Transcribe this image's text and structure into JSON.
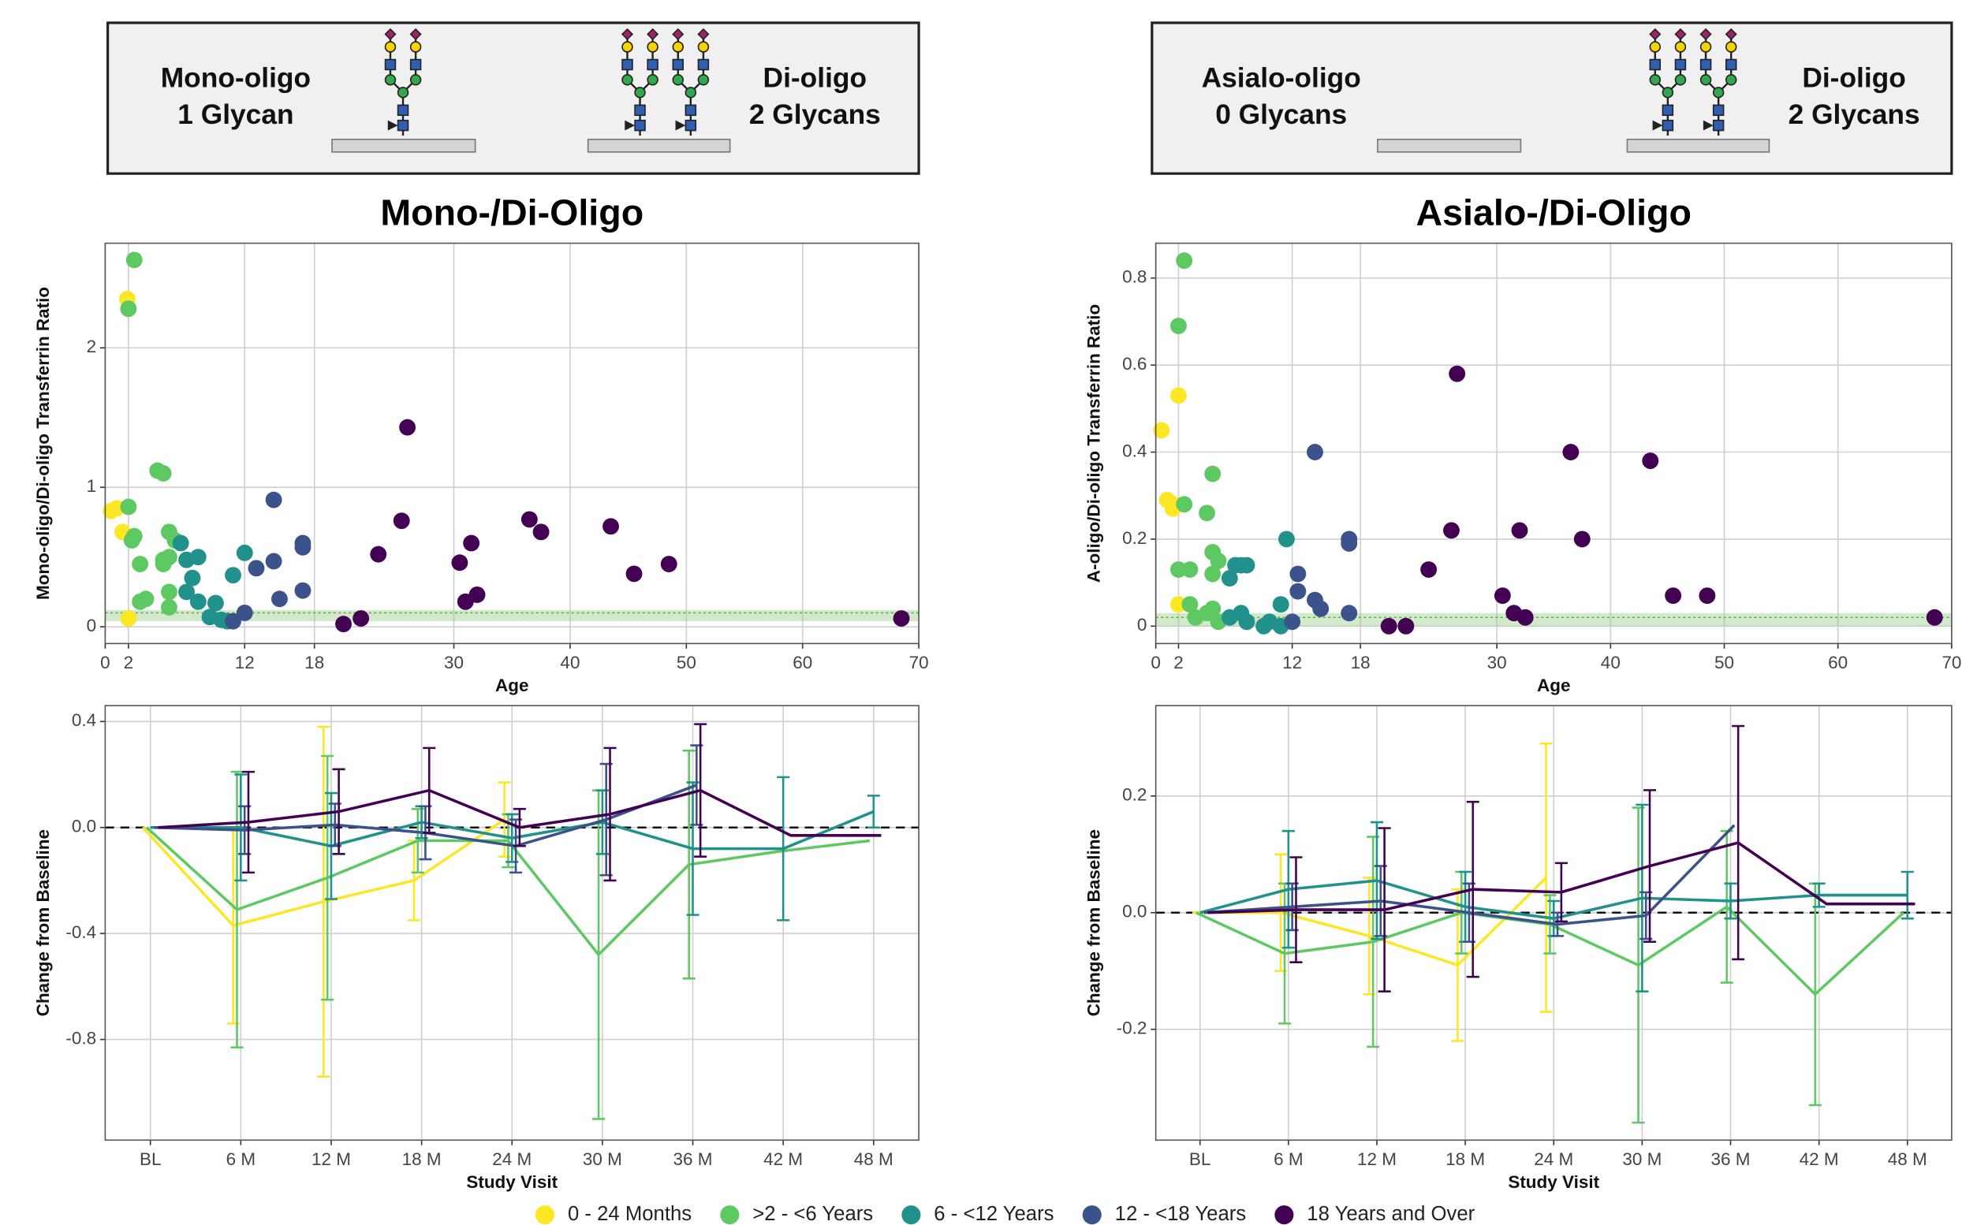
{
  "headers": [
    {
      "left": "Mono-oligo",
      "left_sub": "1 Glycan",
      "right": "Di-oligo",
      "right_sub": "2 Glycans"
    },
    {
      "left": "Asialo-oligo",
      "left_sub": "0 Glycans",
      "right": "Di-oligo",
      "right_sub": "2 Glycans"
    }
  ],
  "chart_data": [
    {
      "type": "scatter",
      "title": "Mono-/Di-Oligo",
      "x_label": "Age",
      "y_label": "Mono-oligo/Di-oligo Transferrin Ratio",
      "xlim": [
        0,
        70
      ],
      "xticks": [
        0,
        2,
        12,
        18,
        30,
        40,
        50,
        60,
        70
      ],
      "ylim": [
        -0.12,
        2.75
      ],
      "yticks": [
        0,
        1,
        2
      ],
      "grid": true,
      "reference_band": [
        0.04,
        0.12
      ],
      "reference_line": 0.1,
      "series": [
        {
          "name": "0 - 24 Months",
          "color": "#fde725",
          "x": [
            0.5,
            1,
            1.5,
            2,
            1.9
          ],
          "values": [
            0.83,
            0.85,
            0.68,
            0.06,
            2.35
          ]
        },
        {
          "name": ">2 - <6 Years",
          "color": "#5ec962",
          "x": [
            2,
            2.5,
            2,
            2.3,
            2.5,
            3,
            3,
            3.5,
            4.5,
            5,
            5.5,
            5,
            5,
            5.5,
            5.5,
            5.5,
            6
          ],
          "values": [
            2.28,
            2.63,
            0.86,
            0.62,
            0.65,
            0.45,
            0.18,
            0.2,
            1.12,
            1.1,
            0.5,
            0.48,
            0.45,
            0.68,
            0.25,
            0.14,
            0.62
          ]
        },
        {
          "name": "6 - <12 Years",
          "color": "#21918c",
          "x": [
            6.5,
            7,
            7,
            7.5,
            8,
            8,
            9,
            9.5,
            10,
            10.5,
            11,
            12
          ],
          "values": [
            0.6,
            0.48,
            0.25,
            0.35,
            0.5,
            0.18,
            0.07,
            0.17,
            0.05,
            0.04,
            0.37,
            0.53
          ]
        },
        {
          "name": "12 - <18 Years",
          "color": "#3b528b",
          "x": [
            12,
            13,
            14.5,
            14.5,
            15,
            17,
            17,
            17,
            11
          ],
          "values": [
            0.1,
            0.42,
            0.47,
            0.91,
            0.2,
            0.6,
            0.57,
            0.26,
            0.04
          ]
        },
        {
          "name": "18 Years and Over",
          "color": "#440154",
          "x": [
            20.5,
            22,
            23.5,
            25.5,
            26,
            30.5,
            31,
            31.5,
            32,
            36.5,
            37.5,
            43.5,
            45.5,
            48.5,
            68.5
          ],
          "values": [
            0.02,
            0.06,
            0.52,
            0.76,
            1.43,
            0.46,
            0.18,
            0.6,
            0.23,
            0.77,
            0.68,
            0.72,
            0.38,
            0.45,
            0.06
          ]
        }
      ]
    },
    {
      "type": "scatter",
      "title": "Asialo-/Di-Oligo",
      "x_label": "Age",
      "y_label": "A-oligo/Di-oligo Transferrin Ratio",
      "xlim": [
        0,
        70
      ],
      "xticks": [
        0,
        2,
        12,
        18,
        30,
        40,
        50,
        60,
        70
      ],
      "ylim": [
        -0.04,
        0.88
      ],
      "yticks": [
        0,
        0.2,
        0.4,
        0.6,
        0.8
      ],
      "grid": true,
      "reference_band": [
        0.0,
        0.03
      ],
      "reference_line": 0.02,
      "series": [
        {
          "x": [
            0.5,
            1,
            1.5,
            2,
            2,
            1.5
          ],
          "values": [
            0.45,
            0.29,
            0.27,
            0.53,
            0.05,
            0.28
          ]
        },
        {
          "x": [
            2.5,
            2,
            2.5,
            2,
            3,
            3,
            3.5,
            5,
            4.5,
            5,
            5.5,
            5,
            5,
            5.5,
            4.5
          ],
          "values": [
            0.84,
            0.69,
            0.28,
            0.13,
            0.13,
            0.05,
            0.02,
            0.35,
            0.26,
            0.17,
            0.15,
            0.12,
            0.04,
            0.01,
            0.03
          ]
        },
        {
          "x": [
            6.5,
            7,
            7.5,
            8,
            6.5,
            7.5,
            8,
            9.5,
            10,
            11,
            11.5,
            11
          ],
          "values": [
            0.11,
            0.14,
            0.14,
            0.14,
            0.02,
            0.03,
            0.01,
            0.0,
            0.01,
            0.05,
            0.2,
            0.0
          ]
        },
        {
          "x": [
            12.5,
            12.5,
            12,
            14,
            14,
            14.5,
            17,
            17,
            17
          ],
          "values": [
            0.12,
            0.08,
            0.01,
            0.4,
            0.06,
            0.04,
            0.2,
            0.19,
            0.03
          ]
        },
        {
          "x": [
            20.5,
            22,
            24,
            26,
            26.5,
            30.5,
            31.5,
            32,
            32.5,
            36.5,
            37.5,
            43.5,
            45.5,
            48.5,
            68.5
          ],
          "values": [
            0.0,
            0.0,
            0.13,
            0.22,
            0.58,
            0.07,
            0.03,
            0.22,
            0.02,
            0.4,
            0.2,
            0.38,
            0.07,
            0.07,
            0.02
          ]
        }
      ]
    },
    {
      "type": "line",
      "x_label": "Study Visit",
      "y_label": "Change from Baseline",
      "categories": [
        "BL",
        "6 M",
        "12 M",
        "18 M",
        "24 M",
        "30 M",
        "36 M",
        "42 M",
        "48 M"
      ],
      "ylim": [
        -1.18,
        0.46
      ],
      "yticks": [
        -0.8,
        -0.4,
        {
          "value": 0,
          "label": "0.0"
        },
        0.4
      ],
      "grid": true,
      "zero_line": true,
      "series": [
        {
          "values": [
            0,
            -0.37,
            -0.28,
            -0.2,
            0.03,
            null,
            null,
            null,
            null
          ],
          "errors": [
            null,
            0.37,
            0.66,
            0.15,
            0.14,
            null,
            null,
            null,
            null
          ]
        },
        {
          "values": [
            0,
            -0.31,
            -0.19,
            -0.05,
            -0.05,
            -0.48,
            -0.14,
            -0.09,
            -0.05
          ],
          "errors": [
            null,
            0.52,
            0.46,
            0.12,
            0.1,
            0.62,
            0.43,
            null,
            null
          ]
        },
        {
          "values": [
            0,
            0.0,
            -0.07,
            0.02,
            -0.04,
            0.02,
            -0.08,
            -0.08,
            0.06
          ],
          "errors": [
            null,
            0.2,
            0.2,
            0.06,
            0.09,
            0.12,
            0.25,
            0.27,
            0.06
          ]
        },
        {
          "values": [
            0,
            -0.01,
            0.01,
            -0.02,
            -0.07,
            0.03,
            0.16,
            null,
            null
          ],
          "errors": [
            null,
            0.09,
            0.08,
            0.1,
            0.1,
            0.21,
            0.15,
            null,
            null
          ]
        },
        {
          "values": [
            0,
            0.02,
            0.06,
            0.14,
            0.0,
            0.05,
            0.14,
            -0.03,
            -0.03
          ],
          "errors": [
            null,
            0.19,
            0.16,
            0.16,
            0.07,
            0.25,
            0.25,
            null,
            null
          ]
        }
      ]
    },
    {
      "type": "line",
      "x_label": "Study Visit",
      "y_label": "Change from Baseline",
      "categories": [
        "BL",
        "6 M",
        "12 M",
        "18 M",
        "24 M",
        "30 M",
        "36 M",
        "42 M",
        "48 M"
      ],
      "ylim": [
        -0.39,
        0.355
      ],
      "yticks": [
        -0.2,
        {
          "value": 0,
          "label": "0.0"
        },
        0.2
      ],
      "grid": true,
      "zero_line": true,
      "series": [
        {
          "values": [
            0,
            0.0,
            -0.04,
            -0.09,
            0.06,
            null,
            null,
            null,
            null
          ],
          "errors": [
            null,
            0.1,
            0.1,
            0.13,
            0.23,
            null,
            null,
            null,
            null
          ]
        },
        {
          "values": [
            0,
            -0.07,
            -0.05,
            0.0,
            -0.02,
            -0.09,
            0.01,
            -0.14,
            0.0
          ],
          "errors": [
            null,
            0.12,
            0.18,
            0.07,
            0.05,
            0.27,
            0.13,
            0.19,
            null
          ]
        },
        {
          "values": [
            0,
            0.04,
            0.055,
            0.01,
            -0.01,
            0.025,
            0.02,
            0.03,
            0.03
          ],
          "errors": [
            null,
            0.1,
            0.1,
            0.06,
            0.03,
            0.16,
            0.03,
            0.02,
            0.04
          ]
        },
        {
          "values": [
            0,
            0.01,
            0.02,
            0.0,
            -0.02,
            -0.005,
            0.15,
            null,
            null
          ],
          "errors": [
            null,
            0.04,
            0.06,
            0.05,
            0.02,
            0.04,
            null,
            null,
            null
          ]
        },
        {
          "values": [
            0,
            0.005,
            0.005,
            0.04,
            0.035,
            0.08,
            0.12,
            0.015,
            0.015
          ],
          "errors": [
            null,
            0.09,
            0.14,
            0.15,
            0.05,
            0.13,
            0.2,
            null,
            null
          ]
        }
      ]
    }
  ]
}
